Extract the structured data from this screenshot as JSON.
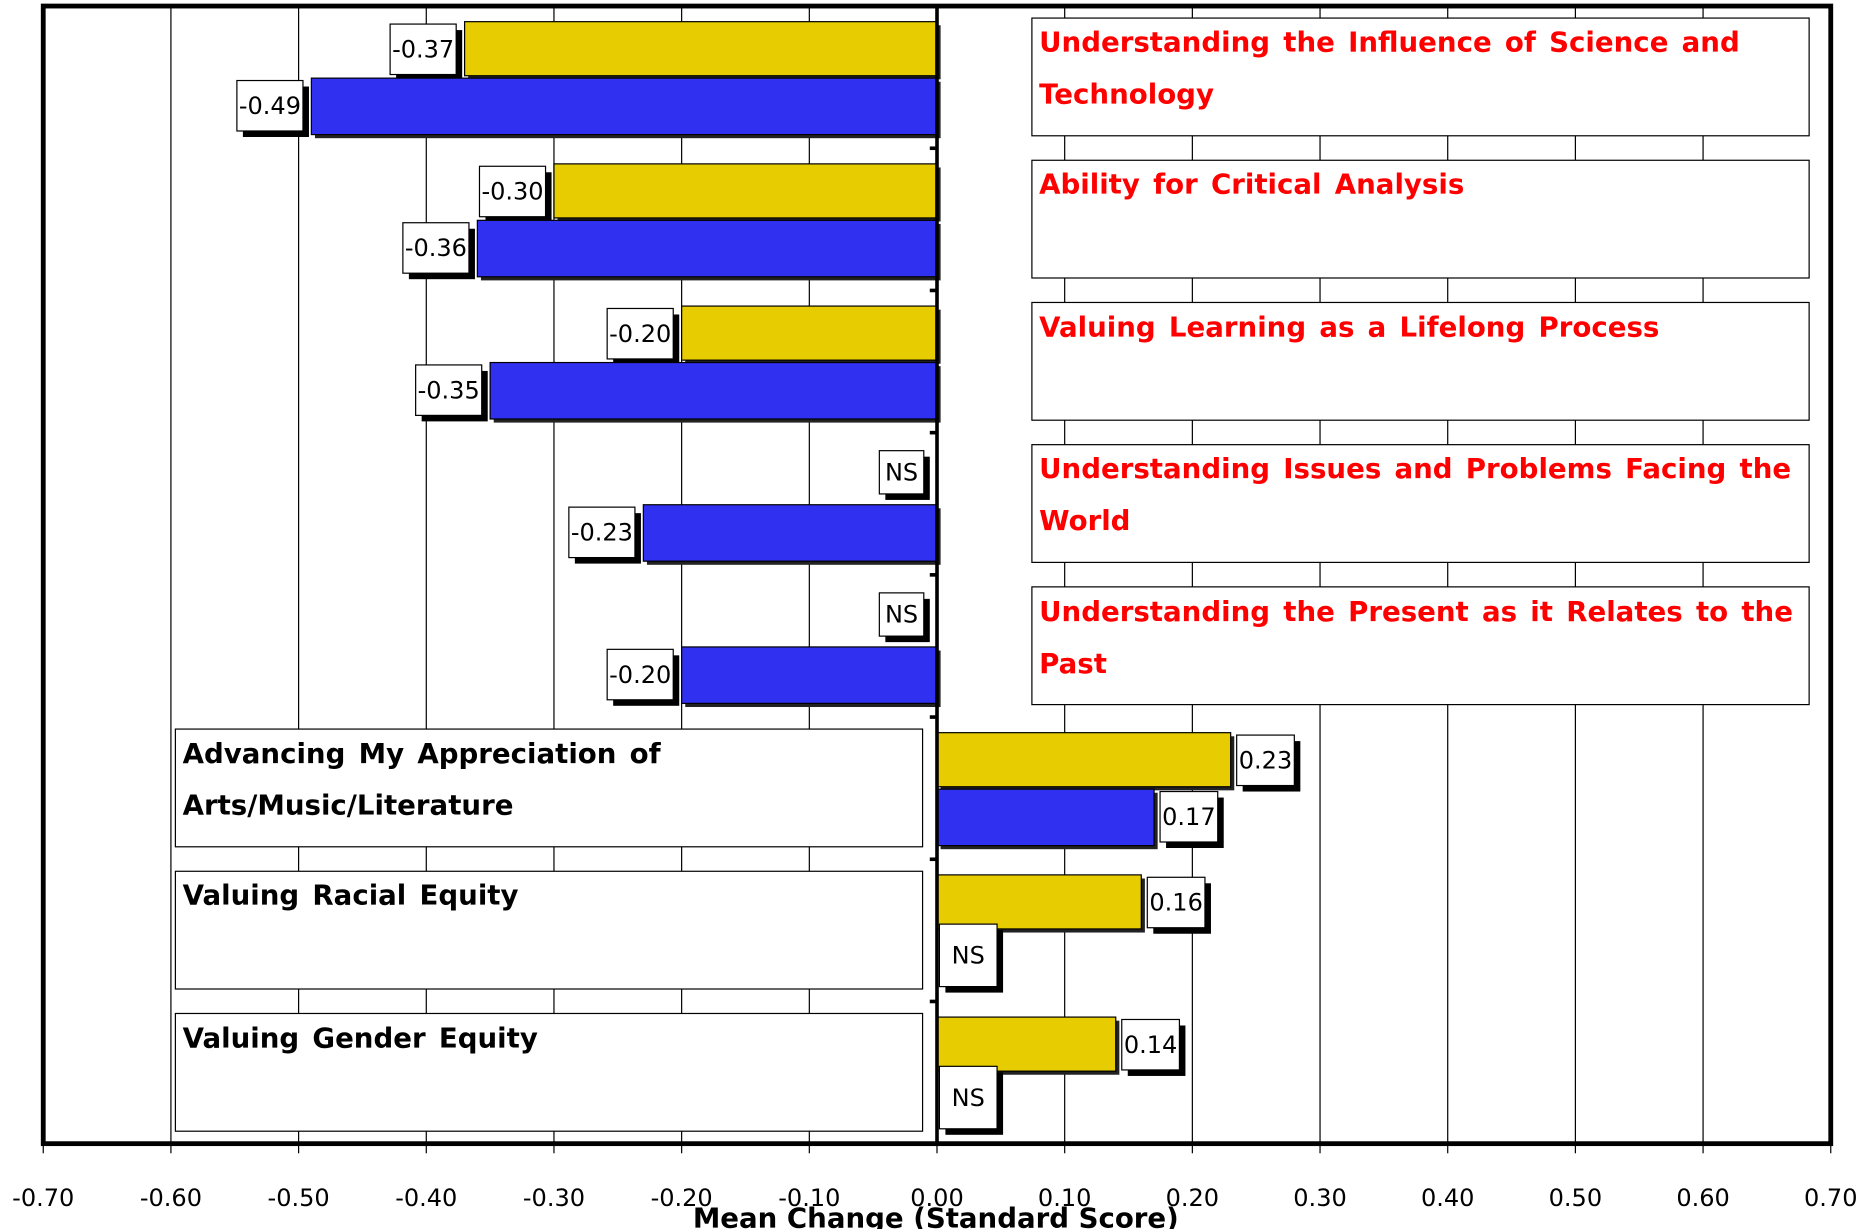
{
  "chart_data": {
    "type": "barh",
    "x_label": "Mean Change (Standard Score)",
    "categories": [
      "Understanding the Influence of Science and Technology",
      "Ability for Critical Analysis",
      "Valuing Learning as a Lifelong Process",
      "Understanding Issues and Problems Facing the World",
      "Understanding the Present as it Relates to the Past",
      "Advancing My Appreciation of Arts/Music/Literature",
      "Valuing Racial Equity",
      "Valuing Gender Equity"
    ],
    "category_label_colors": [
      "#ff0000",
      "#ff0000",
      "#ff0000",
      "#ff0000",
      "#ff0000",
      "#000000",
      "#000000",
      "#000000"
    ],
    "series": [
      {
        "color": "#e6cc00",
        "values": [
          -0.37,
          -0.3,
          -0.2,
          null,
          null,
          0.23,
          0.16,
          0.14
        ],
        "value_labels": [
          "-0.37",
          "-0.30",
          "-0.20",
          "NS",
          "NS",
          "0.23",
          "0.16",
          "0.14"
        ]
      },
      {
        "color": "#3030f0",
        "values": [
          -0.49,
          -0.36,
          -0.35,
          -0.23,
          -0.2,
          0.17,
          null,
          null
        ],
        "value_labels": [
          "-0.49",
          "-0.36",
          "-0.35",
          "-0.23",
          "-0.20",
          "0.17",
          "NS",
          "NS"
        ]
      }
    ],
    "xlim": [
      -0.7,
      0.7
    ],
    "xticks": [
      {
        "value": -0.7,
        "label": "-0.70"
      },
      {
        "value": -0.6,
        "label": "-0.60"
      },
      {
        "value": -0.5,
        "label": "-0.50"
      },
      {
        "value": -0.4,
        "label": "-0.40"
      },
      {
        "value": -0.3,
        "label": "-0.30"
      },
      {
        "value": -0.2,
        "label": "-0.20"
      },
      {
        "value": -0.1,
        "label": "-0.10"
      },
      {
        "value": 0,
        "label": "0.00"
      },
      {
        "value": 0.1,
        "label": "0.10"
      },
      {
        "value": 0.2,
        "label": "0.20"
      },
      {
        "value": 0.3,
        "label": "0.30"
      },
      {
        "value": 0.4,
        "label": "0.40"
      },
      {
        "value": 0.5,
        "label": "0.50"
      },
      {
        "value": 0.6,
        "label": "0.60"
      },
      {
        "value": 0.7,
        "label": "0.70"
      }
    ],
    "grid": true
  }
}
